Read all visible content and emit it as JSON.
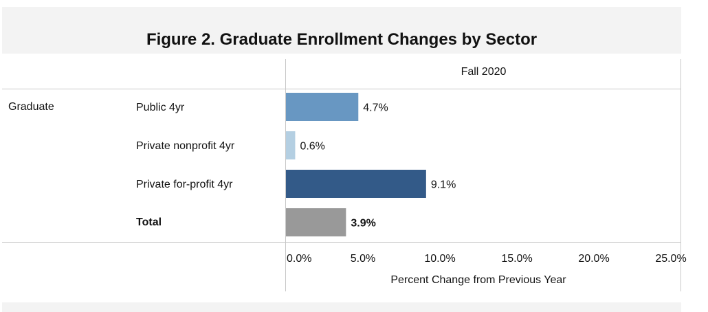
{
  "title": "Figure 2. Graduate Enrollment Changes by Sector",
  "column_header": "Fall 2020",
  "group_label": "Graduate",
  "colors": {
    "public": "#6897c2",
    "nonprofit": "#b4cfe2",
    "forprofit": "#335a88",
    "total": "#999999",
    "grid": "#c8c8c8"
  },
  "chart_data": {
    "type": "bar",
    "orientation": "horizontal",
    "title": "Figure 2. Graduate Enrollment Changes by Sector",
    "categories": [
      "Public 4yr",
      "Private nonprofit 4yr",
      "Private for-profit 4yr",
      "Total"
    ],
    "values": [
      4.7,
      0.6,
      9.1,
      3.9
    ],
    "value_labels": [
      "4.7%",
      "0.6%",
      "9.1%",
      "3.9%"
    ],
    "bold": [
      false,
      false,
      false,
      true
    ],
    "bar_colors": [
      "#6897c2",
      "#b4cfe2",
      "#335a88",
      "#999999"
    ],
    "xlim": [
      0,
      25
    ],
    "x_ticks": [
      0,
      5,
      10,
      15,
      20,
      25
    ],
    "x_tick_labels": [
      "0.0%",
      "5.0%",
      "10.0%",
      "15.0%",
      "20.0%",
      "25.0%"
    ],
    "xlabel": "Percent Change from Previous Year",
    "ylabel": "",
    "grid": false
  }
}
